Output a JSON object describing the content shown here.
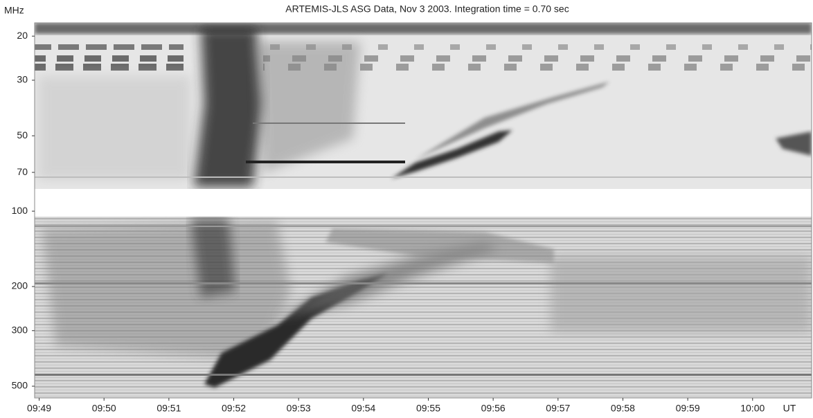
{
  "chart_data": {
    "type": "spectrogram",
    "title": "ARTEMIS-JLS ASG Data, Nov 3 2003. Integration time = 0.70 sec",
    "y_label": "MHz",
    "x_label": "UT",
    "ylog": true,
    "ylim": [
      17.7,
      557
    ],
    "yticks": [
      20,
      30,
      50,
      70,
      100,
      200,
      300,
      500
    ],
    "xlim": [
      588.93,
      600.91
    ],
    "xticks": [
      {
        "value": 589,
        "label": "09:49"
      },
      {
        "value": 590,
        "label": "09:50"
      },
      {
        "value": 591,
        "label": "09:51"
      },
      {
        "value": 592,
        "label": "09:52"
      },
      {
        "value": 593,
        "label": "09:53"
      },
      {
        "value": 594,
        "label": "09:54"
      },
      {
        "value": 595,
        "label": "09:55"
      },
      {
        "value": 596,
        "label": "09:56"
      },
      {
        "value": 597,
        "label": "09:57"
      },
      {
        "value": 598,
        "label": "09:58"
      },
      {
        "value": 599,
        "label": "09:59"
      },
      {
        "value": 600,
        "label": "10:00"
      }
    ]
  }
}
